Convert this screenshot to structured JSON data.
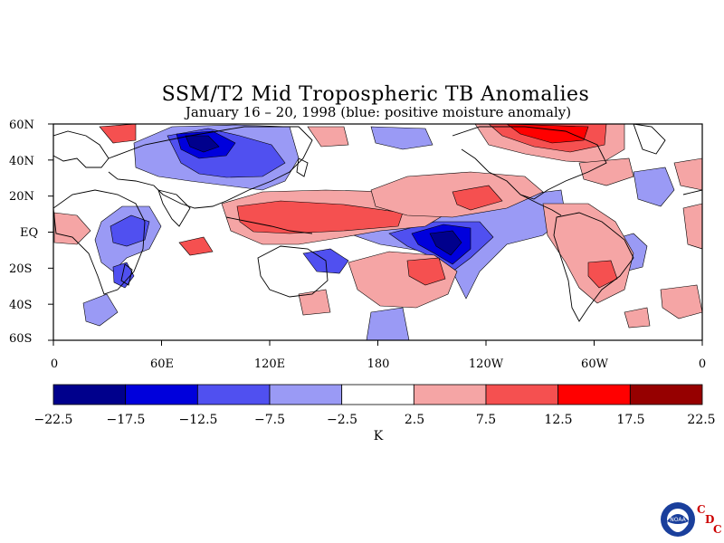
{
  "title": "SSM/T2 Mid Tropospheric TB Anomalies",
  "subtitle": "January 16 – 20, 1998 (blue: positive moisture anomaly)",
  "lat_labels": [
    "60N",
    "40N",
    "20N",
    "EQ",
    "20S",
    "40S",
    "60S"
  ],
  "lon_labels": [
    "0",
    "60E",
    "120E",
    "180",
    "120W",
    "60W",
    "0"
  ],
  "colorbar": {
    "labels": [
      "−22.5",
      "−17.5",
      "−12.5",
      "−7.5",
      "−2.5",
      "2.5",
      "7.5",
      "12.5",
      "17.5",
      "22.5"
    ],
    "colors": [
      "#00008c",
      "#0000dc",
      "#5050f0",
      "#9a9af5",
      "#ffffff",
      "#f5a5a5",
      "#f55050",
      "#ff0000",
      "#960000"
    ],
    "unit": "K"
  },
  "logo": {
    "text": "NOAA",
    "letters": [
      "C",
      "D",
      "C"
    ]
  }
}
